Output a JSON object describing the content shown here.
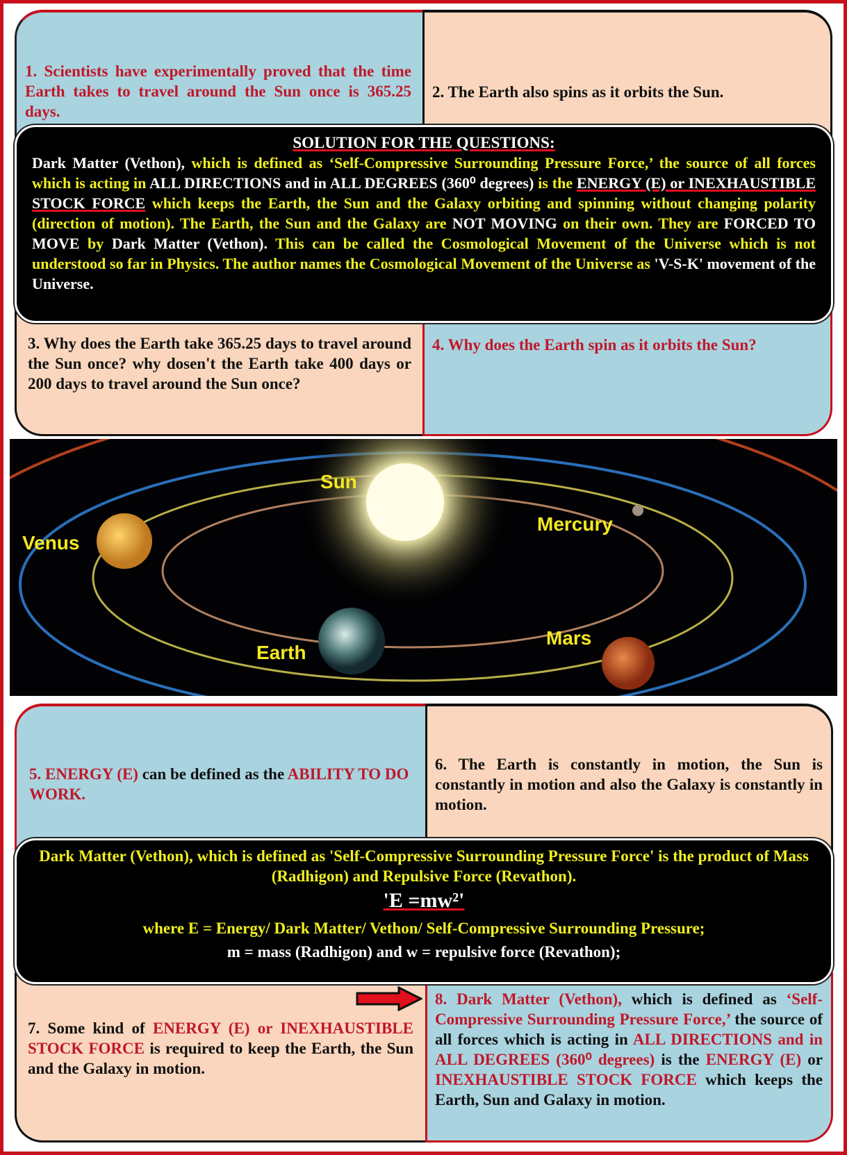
{
  "top_panel": {
    "q1": [
      {
        "text": "1. Scientists have experimentally proved that the time Earth takes to travel around the Sun once is 365.25 days.",
        "color": "red"
      }
    ],
    "q2": [
      {
        "text": "2. The Earth also spins as it orbits the Sun.",
        "color": "black"
      }
    ],
    "solution": {
      "heading": "SOLUTION FOR THE QUESTIONS:",
      "body": [
        {
          "text": "Dark Matter (Vethon), ",
          "color": "white"
        },
        {
          "text": "which is defined as ‘Self-Compressive Surrounding Pressure Force,’ the source of all forces which is acting in ",
          "color": "yellow"
        },
        {
          "text": "ALL DIRECTIONS and in ALL DEGREES (360⁰ degrees)",
          "color": "white"
        },
        {
          "text": " is the ",
          "color": "yellow"
        },
        {
          "text": "ENERGY (E) or INEXHAUSTIBLE STOCK FORCE",
          "color": "white",
          "underline": true
        },
        {
          "text": " which keeps the Earth, the Sun and the Galaxy orbiting and spinning without changing polarity (direction of motion). The Earth, the Sun and the Galaxy are ",
          "color": "yellow"
        },
        {
          "text": "NOT MOVING",
          "color": "white"
        },
        {
          "text": " on their own. They are ",
          "color": "yellow"
        },
        {
          "text": "FORCED TO MOVE",
          "color": "white"
        },
        {
          "text": " by ",
          "color": "yellow"
        },
        {
          "text": "Dark Matter (Vethon).",
          "color": "white"
        },
        {
          "text": " This can be called the Cosmological Movement of the Universe which is not understood so far in Physics. The author names the Cosmological Movement of the Universe as ",
          "color": "yellow"
        },
        {
          "text": "'V-S-K' movement of the Universe.",
          "color": "white"
        }
      ]
    },
    "q3": [
      {
        "text": "3. Why does the Earth take 365.25 days to travel around the Sun once? why dosen't the Earth take 400 days or 200 days to travel around the Sun once?",
        "color": "black"
      }
    ],
    "q4": [
      {
        "text": "4. Why does the Earth spin as it orbits the Sun?",
        "color": "red"
      }
    ]
  },
  "solar_image": {
    "labels": {
      "sun": "Sun",
      "mercury": "Mercury",
      "venus": "Venus",
      "earth": "Earth",
      "mars": "Mars"
    }
  },
  "bottom_panel": {
    "p5": [
      {
        "text": "5. ENERGY (E)",
        "color": "red"
      },
      {
        "text": " can be defined as the ",
        "color": "black"
      },
      {
        "text": "ABILITY TO DO WORK.",
        "color": "red"
      }
    ],
    "p6": [
      {
        "text": "6. The Earth is constantly in motion, the Sun is constantly in motion and also the Galaxy is constantly in motion.",
        "color": "black"
      }
    ],
    "formula_box": {
      "line1": [
        {
          "text": "Dark Matter (Vethon), which is defined as 'Self-Compressive Surrounding Pressure Force' is the product of Mass (Radhigon) and Repulsive Force (Revathon).",
          "color": "yellow"
        }
      ],
      "equation": [
        {
          "text": "'E =mw²'",
          "color": "white",
          "underline": true
        }
      ],
      "where": [
        {
          "text": "where E = Energy/ Dark Matter/ Vethon/ Self-Compressive Surrounding Pressure;",
          "color": "yellow"
        }
      ],
      "definitions": [
        {
          "text": "m = mass (Radhigon) and w = repulsive force (Revathon);",
          "color": "white"
        }
      ]
    },
    "p7": [
      {
        "text": "7. Some kind of ",
        "color": "black"
      },
      {
        "text": "ENERGY (E) or INEXHAUSTIBLE STOCK FORCE",
        "color": "red"
      },
      {
        "text": " is required to keep the Earth, the Sun and the Galaxy in motion.",
        "color": "black"
      }
    ],
    "p8": [
      {
        "text": "8. Dark Matter (Vethon),",
        "color": "red"
      },
      {
        "text": " which is defined as ",
        "color": "black"
      },
      {
        "text": "‘Self-Compressive Surrounding Pressure Force,’",
        "color": "red"
      },
      {
        "text": " the source of all forces which is acting in ",
        "color": "black"
      },
      {
        "text": "ALL DIRECTIONS and in ALL DEGREES (360⁰ degrees)",
        "color": "red"
      },
      {
        "text": " is the ",
        "color": "black"
      },
      {
        "text": "ENERGY (E)",
        "color": "red"
      },
      {
        "text": " or ",
        "color": "black"
      },
      {
        "text": "INEXHAUSTIBLE STOCK FORCE",
        "color": "red"
      },
      {
        "text": " which keeps the Earth, Sun and Galaxy in motion.",
        "color": "black"
      }
    ]
  }
}
